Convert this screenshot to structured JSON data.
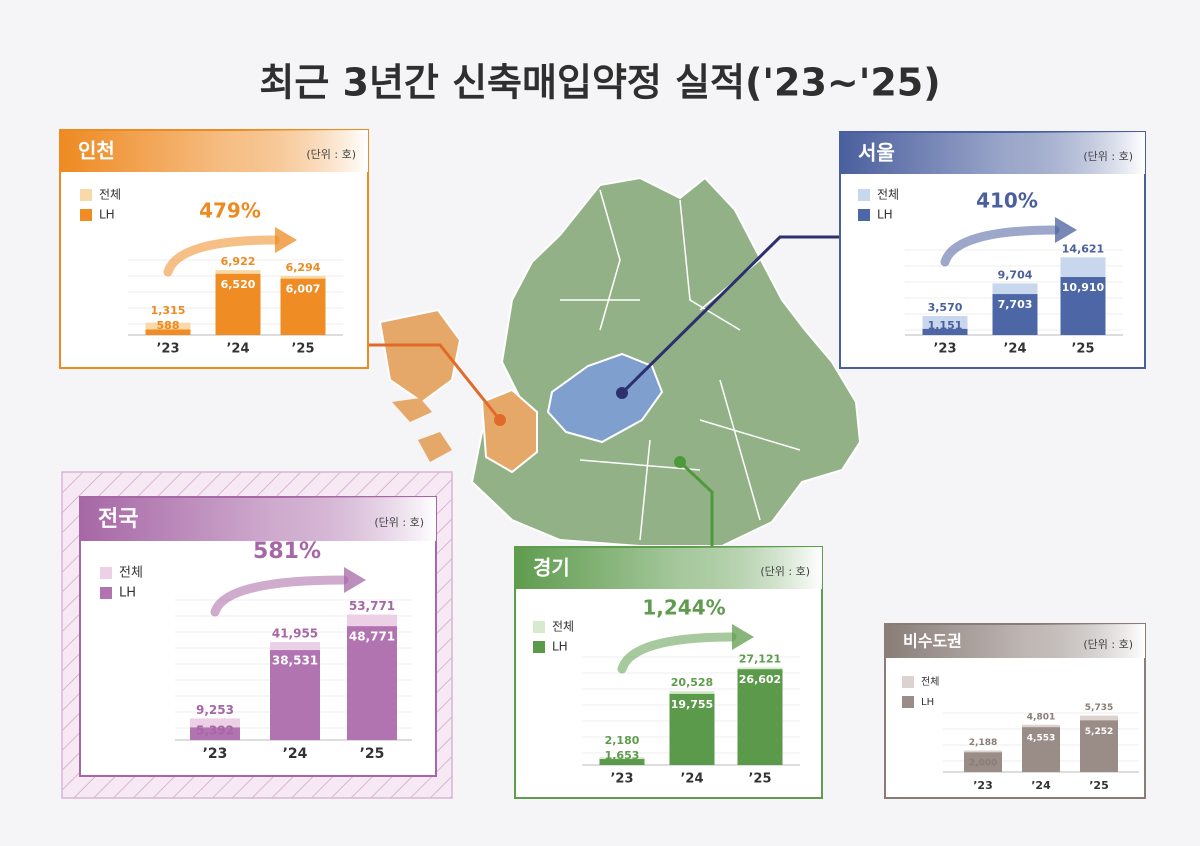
{
  "title": "최근 3년간 신축매입약정 실적('23~'25)",
  "chart_data": [
    {
      "type": "bar",
      "title": "인천",
      "unit": "(단위 : 호)",
      "growth": "479%",
      "color": "#ee8a22",
      "categories": [
        "’23",
        "’24",
        "’25"
      ],
      "ylim": [
        0,
        8000
      ],
      "series": [
        {
          "name": "전체",
          "color": "#f8d9a8",
          "values": [
            1315,
            6922,
            6294
          ],
          "value_labels": [
            "1,315",
            "6,922",
            "6,294"
          ]
        },
        {
          "name": "LH",
          "color": "#ef8c24",
          "values": [
            588,
            6520,
            6007
          ],
          "value_labels": [
            "588",
            "6,520",
            "6,007"
          ]
        }
      ]
    },
    {
      "type": "bar",
      "title": "서울",
      "unit": "(단위 : 호)",
      "growth": "410%",
      "color": "#4a5f9e",
      "categories": [
        "’23",
        "’24",
        "’25"
      ],
      "ylim": [
        0,
        16000
      ],
      "series": [
        {
          "name": "전체",
          "color": "#c9d7ee",
          "values": [
            3570,
            9704,
            14621
          ],
          "value_labels": [
            "3,570",
            "9,704",
            "14,621"
          ]
        },
        {
          "name": "LH",
          "color": "#4d66a6",
          "values": [
            1151,
            7703,
            10910
          ],
          "value_labels": [
            "1,151",
            "7,703",
            "10,910"
          ]
        }
      ]
    },
    {
      "type": "bar",
      "title": "전국",
      "unit": "(단위 : 호)",
      "growth": "581%",
      "color": "#a767a6",
      "categories": [
        "’23",
        "’24",
        "’25"
      ],
      "ylim": [
        0,
        60000
      ],
      "series": [
        {
          "name": "전체",
          "color": "#ebd0e6",
          "values": [
            9253,
            41955,
            53771
          ],
          "value_labels": [
            "9,253",
            "41,955",
            "53,771"
          ]
        },
        {
          "name": "LH",
          "color": "#b273b1",
          "values": [
            5392,
            38531,
            48771
          ],
          "value_labels": [
            "5,392",
            "38,531",
            "48,771"
          ]
        }
      ]
    },
    {
      "type": "bar",
      "title": "경기",
      "unit": "(단위 : 호)",
      "growth": "1,244%",
      "color": "#5f9c4e",
      "categories": [
        "’23",
        "’24",
        "’25"
      ],
      "ylim": [
        0,
        30000
      ],
      "series": [
        {
          "name": "전체",
          "color": "#d6ebcd",
          "values": [
            2180,
            20528,
            27121
          ],
          "value_labels": [
            "2,180",
            "20,528",
            "27,121"
          ]
        },
        {
          "name": "LH",
          "color": "#5b9a4a",
          "values": [
            1653,
            19755,
            26602
          ],
          "value_labels": [
            "1,653",
            "19,755",
            "26,602"
          ]
        }
      ]
    },
    {
      "type": "bar",
      "title": "비수도권",
      "unit": "(단위 : 호)",
      "color": "#8a7d78",
      "categories": [
        "’23",
        "’24",
        "’25"
      ],
      "ylim": [
        0,
        6000
      ],
      "series": [
        {
          "name": "전체",
          "color": "#dcd3d0",
          "values": [
            2188,
            4801,
            5735
          ],
          "value_labels": [
            "2,188",
            "4,801",
            "5,735"
          ]
        },
        {
          "name": "LH",
          "color": "#9a8c86",
          "values": [
            2000,
            4553,
            5252
          ],
          "value_labels": [
            "2,000",
            "4,553",
            "5,252"
          ]
        }
      ]
    }
  ]
}
